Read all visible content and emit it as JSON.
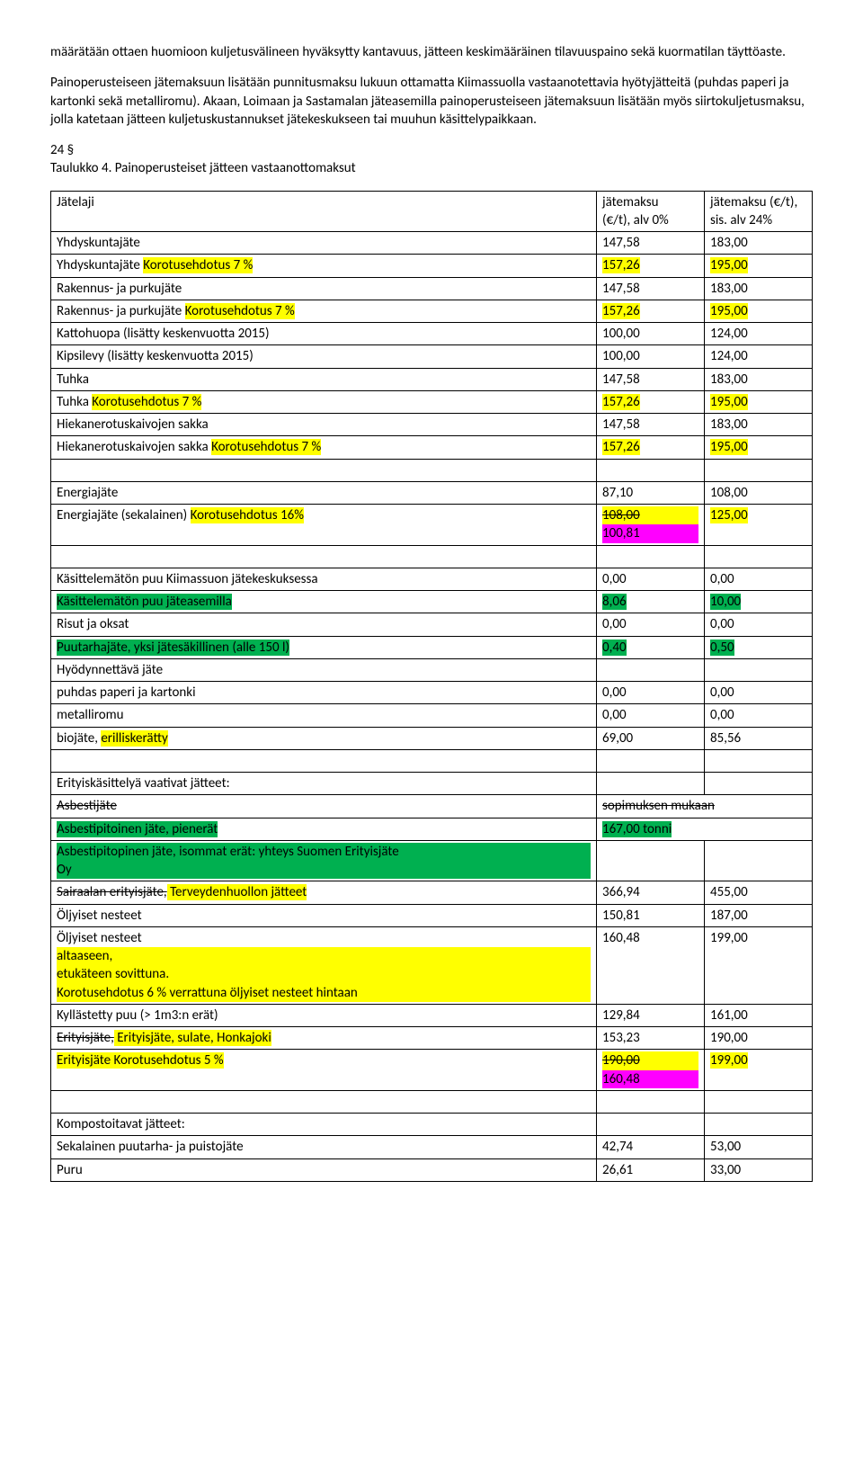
{
  "para1": "määrätään ottaen huomioon kuljetusvälineen hyväksytty kantavuus, jätteen keskimääräinen tilavuuspaino sekä kuormatilan täyttöaste.",
  "para2": "Painoperusteiseen jätemaksuun lisätään punnitusmaksu lukuun ottamatta Kiimassuolla vastaanotettavia hyötyjätteitä (puhdas paperi ja kartonki sekä metalliromu). Akaan, Loimaan ja Sastamalan jäteasemilla painoperusteiseen jätemaksuun lisätään myös siirtokuljetusmaksu, jolla katetaan jätteen kuljetuskustannukset jätekeskukseen tai muuhun käsittelypaikkaan.",
  "section": "24 §",
  "tableTitle": "Taulukko 4. Painoperusteiset jätteen vastaanottomaksut",
  "header": {
    "c0": "Jätelaji",
    "c1a": "jätemaksu",
    "c1b": "(€/t), alv 0%",
    "c2a": "jätemaksu (€/t),",
    "c2b": "sis. alv 24%"
  },
  "rows": {
    "r1": {
      "a": "Yhdyskuntajäte",
      "b": "147,58",
      "c": "183,00"
    },
    "r2": {
      "a_pre": "Yhdyskuntajäte ",
      "a_hl": "Korotusehdotus 7 %",
      "b": "157,26",
      "c": "195,00"
    },
    "r3": {
      "a": "Rakennus- ja purkujäte",
      "b": "147,58",
      "c": "183,00"
    },
    "r4": {
      "a_pre": "Rakennus- ja purkujäte ",
      "a_hl": "Korotusehdotus 7 %",
      "b": "157,26",
      "c": "195,00"
    },
    "r5": {
      "a": "Kattohuopa (lisätty keskenvuotta 2015)",
      "b": "100,00",
      "c": "124,00"
    },
    "r6": {
      "a": "Kipsilevy (lisätty keskenvuotta 2015)",
      "b": "100,00",
      "c": "124,00"
    },
    "r7": {
      "a": "Tuhka",
      "b": "147,58",
      "c": "183,00"
    },
    "r8": {
      "a_pre": "Tuhka ",
      "a_hl": "Korotusehdotus 7 %",
      "b": "157,26",
      "c": "195,00"
    },
    "r9": {
      "a": "Hiekanerotuskaivojen sakka",
      "b": "147,58",
      "c": "183,00"
    },
    "r10": {
      "a_pre": "Hiekanerotuskaivojen sakka ",
      "a_hl": "Korotusehdotus 7 %",
      "b": "157,26",
      "c": "195,00"
    },
    "r12": {
      "a": "Energiajäte",
      "b": "87,10",
      "c": "108,00"
    },
    "r13": {
      "a_pre": "Energiajäte (sekalainen) ",
      "a_hl": "Korotusehdotus 16%",
      "b_strike": "108,00",
      "b_mag": "100,81",
      "c": "125,00"
    },
    "r15": {
      "a": "Käsittelemätön puu Kiimassuon jätekeskuksessa",
      "b": "0,00",
      "c": "0,00"
    },
    "r16": {
      "a": "Käsittelemätön puu jäteasemilla",
      "b": "8,06",
      "c": "10,00"
    },
    "r17": {
      "a": "Risut ja oksat",
      "b": "0,00",
      "c": "0,00"
    },
    "r18": {
      "a": "Puutarhajäte, yksi jätesäkillinen (alle 150 l)",
      "b": "0,40",
      "c": "0,50"
    },
    "r19": {
      "a": "Hyödynnettävä jäte"
    },
    "r20": {
      "a": "puhdas paperi ja kartonki",
      "b": "0,00",
      "c": "0,00"
    },
    "r21": {
      "a": "metalliromu",
      "b": "0,00",
      "c": "0,00"
    },
    "r22": {
      "a_pre": "biojäte, ",
      "a_hl": "erilliskerätty",
      "b": "69,00",
      "c": "85,56"
    },
    "r24": {
      "a": "Erityiskäsittelyä vaativat jätteet:"
    },
    "r25": {
      "a": "Asbestijäte",
      "b": "sopimuksen mukaan"
    },
    "r26": {
      "a": "Asbestipitoinen jäte, pienerät",
      "b": "167,00 tonni"
    },
    "r27": {
      "a1": "Asbestipitopinen jäte, isommat erät: yhteys Suomen Erityisjäte",
      "a2": "Oy"
    },
    "r28": {
      "a_strike": "Sairaalan erityisjäte,",
      "a_hl": " Terveydenhuollon jätteet",
      "b": "366,94",
      "c": "455,00"
    },
    "r29": {
      "a": "Öljyiset nesteet",
      "b": "150,81",
      "c": "187,00"
    },
    "r30": {
      "a_pre": "Öljyiset nesteet ",
      "a_hl1": "altaaseen,",
      "a_mid": " ",
      "a_hl2": "etukäteen sovittuna.",
      "a_line2": "Korotusehdotus 6 % verrattuna öljyiset nesteet hintaan",
      "b": "160,48",
      "c": "199,00"
    },
    "r31": {
      "a": "Kyllästetty puu (> 1m3:n erät)",
      "b": "129,84",
      "c": "161,00"
    },
    "r32": {
      "a_strike": "Erityisjäte,",
      "a_hl": " Erityisjäte, sulate, Honkajoki",
      "b": "153,23",
      "c": "190,00"
    },
    "r33": {
      "a": "Erityisjäte Korotusehdotus 5 %",
      "b_strike": "190,00",
      "b_mag": "160,48",
      "c": "199,00"
    },
    "r35": {
      "a": "Kompostoitavat jätteet:"
    },
    "r36": {
      "a": "Sekalainen puutarha- ja puistojäte",
      "b": "42,74",
      "c": "53,00"
    },
    "r37": {
      "a": "Puru",
      "b": "26,61",
      "c": "33,00"
    }
  }
}
